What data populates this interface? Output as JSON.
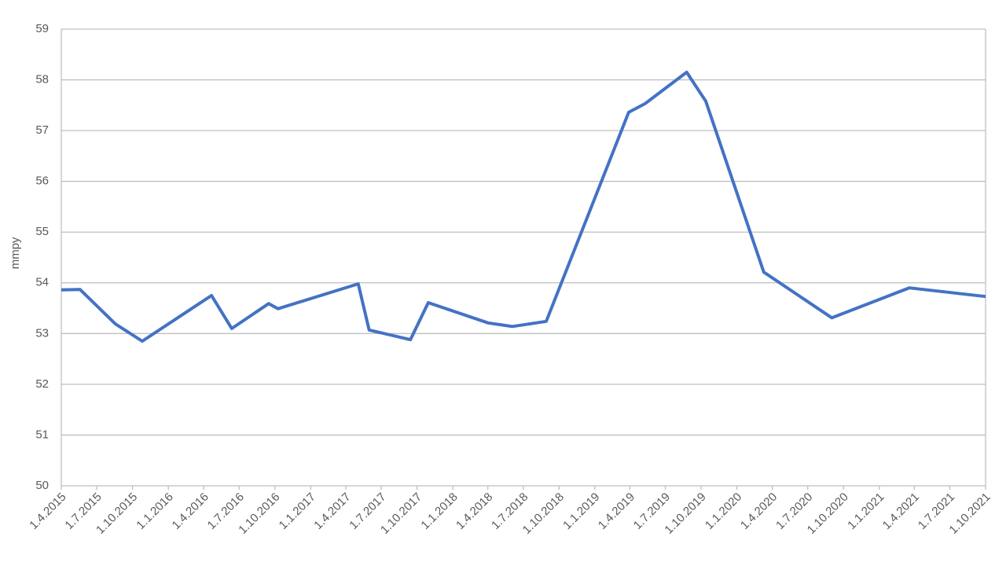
{
  "chart_data": {
    "type": "line",
    "y_label": "mmpy",
    "x": [
      "2015-04-01",
      "2015-05-19",
      "2015-08-18",
      "2015-10-26",
      "2016-04-21",
      "2016-06-12",
      "2016-09-15",
      "2016-10-09",
      "2017-05-03",
      "2017-05-31",
      "2017-09-14",
      "2017-10-30",
      "2018-04-02",
      "2018-06-03",
      "2018-08-29",
      "2019-03-29",
      "2019-05-10",
      "2019-08-25",
      "2019-10-13",
      "2020-03-10",
      "2020-09-01",
      "2021-03-19",
      "2021-10-01"
    ],
    "series": [
      {
        "name": "mmpy",
        "color": "#4472c4",
        "values": [
          53.86,
          53.87,
          53.19,
          52.85,
          53.75,
          53.1,
          53.59,
          53.49,
          53.98,
          53.07,
          52.88,
          53.61,
          53.21,
          53.14,
          53.24,
          57.36,
          57.53,
          58.15,
          57.58,
          54.21,
          53.31,
          53.9,
          53.73
        ]
      }
    ],
    "xlim": [
      "2015-04-01",
      "2021-10-01"
    ],
    "xticks": [
      {
        "value": "2015-04-01",
        "label": "1.4.2015"
      },
      {
        "value": "2015-07-01",
        "label": "1.7.2015"
      },
      {
        "value": "2015-10-01",
        "label": "1.10.2015"
      },
      {
        "value": "2016-01-01",
        "label": "1.1.2016"
      },
      {
        "value": "2016-04-01",
        "label": "1.4.2016"
      },
      {
        "value": "2016-07-01",
        "label": "1.7.2016"
      },
      {
        "value": "2016-10-01",
        "label": "1.10.2016"
      },
      {
        "value": "2017-01-01",
        "label": "1.1.2017"
      },
      {
        "value": "2017-04-01",
        "label": "1.4.2017"
      },
      {
        "value": "2017-07-01",
        "label": "1.7.2017"
      },
      {
        "value": "2017-10-01",
        "label": "1.10.2017"
      },
      {
        "value": "2018-01-01",
        "label": "1.1.2018"
      },
      {
        "value": "2018-04-01",
        "label": "1.4.2018"
      },
      {
        "value": "2018-07-01",
        "label": "1.7.2018"
      },
      {
        "value": "2018-10-01",
        "label": "1.10.2018"
      },
      {
        "value": "2019-01-01",
        "label": "1.1.2019"
      },
      {
        "value": "2019-04-01",
        "label": "1.4.2019"
      },
      {
        "value": "2019-07-01",
        "label": "1.7.2019"
      },
      {
        "value": "2019-10-01",
        "label": "1.10.2019"
      },
      {
        "value": "2020-01-01",
        "label": "1.1.2020"
      },
      {
        "value": "2020-04-01",
        "label": "1.4.2020"
      },
      {
        "value": "2020-07-01",
        "label": "1.7.2020"
      },
      {
        "value": "2020-10-01",
        "label": "1.10.2020"
      },
      {
        "value": "2021-01-01",
        "label": "1.1.2021"
      },
      {
        "value": "2021-04-01",
        "label": "1.4.2021"
      },
      {
        "value": "2021-07-01",
        "label": "1.7.2021"
      },
      {
        "value": "2021-10-01",
        "label": "1.10.2021"
      }
    ],
    "ylim": [
      50,
      59
    ],
    "yticks": [
      50,
      51,
      52,
      53,
      54,
      55,
      56,
      57,
      58,
      59
    ],
    "grid": true
  }
}
